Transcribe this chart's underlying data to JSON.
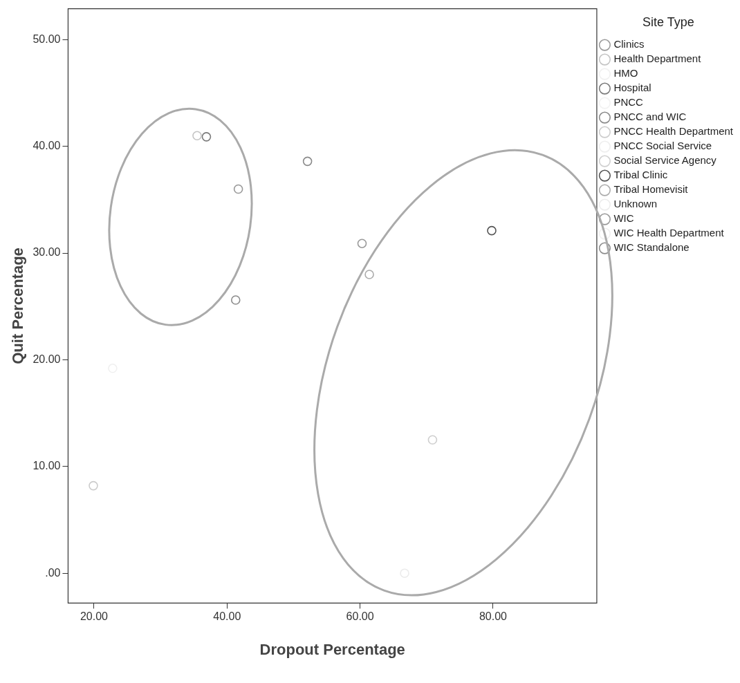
{
  "chart_data": {
    "type": "scatter",
    "xlabel": "Dropout Percentage",
    "ylabel": "Quit Percentage",
    "legend_title": "Site Type",
    "legend": "right",
    "grid": false,
    "marker": "circle",
    "xlim": [
      16.1,
      95.6
    ],
    "ylim": [
      -2.8,
      52.9
    ],
    "xticks": [
      {
        "value": 20,
        "label": "20.00"
      },
      {
        "value": 40,
        "label": "40.00"
      },
      {
        "value": 60,
        "label": "60.00"
      },
      {
        "value": 80,
        "label": "80.00"
      }
    ],
    "yticks": [
      {
        "value": 0,
        "label": ".00"
      },
      {
        "value": 10,
        "label": "10.00"
      },
      {
        "value": 20,
        "label": "20.00"
      },
      {
        "value": 30,
        "label": "30.00"
      },
      {
        "value": 40,
        "label": "40.00"
      },
      {
        "value": 50,
        "label": "50.00"
      }
    ],
    "series": [
      {
        "name": "Clinics",
        "color": "#9a9a9a",
        "x": [
          60.3
        ],
        "values": [
          30.9
        ]
      },
      {
        "name": "Health Department",
        "color": "#c4c4c4",
        "x": [
          35.5
        ],
        "values": [
          41.0
        ]
      },
      {
        "name": "HMO",
        "color": "#f0f0f0",
        "x": [
          22.8
        ],
        "values": [
          19.2
        ]
      },
      {
        "name": "Hospital",
        "color": "#7a7a7a",
        "x": [
          36.9
        ],
        "values": [
          40.9
        ]
      },
      {
        "name": "PNCC",
        "color": "#f2f2f2"
      },
      {
        "name": "PNCC and WIC",
        "color": "#8a8a8a",
        "x": [
          52.1
        ],
        "values": [
          38.6
        ]
      },
      {
        "name": "PNCC Health Department",
        "color": "#cccccc",
        "x": [
          19.9
        ],
        "values": [
          8.2
        ]
      },
      {
        "name": "PNCC Social Service",
        "color": "#eeeeee"
      },
      {
        "name": "Social Service Agency",
        "color": "#cfcfcf",
        "x": [
          70.9
        ],
        "values": [
          12.5
        ]
      },
      {
        "name": "Tribal Clinic",
        "color": "#555555",
        "x": [
          79.8
        ],
        "values": [
          32.1
        ]
      },
      {
        "name": "Tribal Homevisit",
        "color": "#ababab",
        "x": [
          61.4
        ],
        "values": [
          28.0
        ]
      },
      {
        "name": "Unknown",
        "color": "#ececec",
        "x": [
          66.7
        ],
        "values": [
          0.0
        ]
      },
      {
        "name": "WIC",
        "color": "#999999",
        "x": [
          41.7
        ],
        "values": [
          36.0
        ]
      },
      {
        "name": "WIC Health Department",
        "color": "#efefef"
      },
      {
        "name": "WIC Standalone",
        "color": "#8c8c8c",
        "x": [
          41.3
        ],
        "values": [
          25.6
        ]
      }
    ]
  }
}
